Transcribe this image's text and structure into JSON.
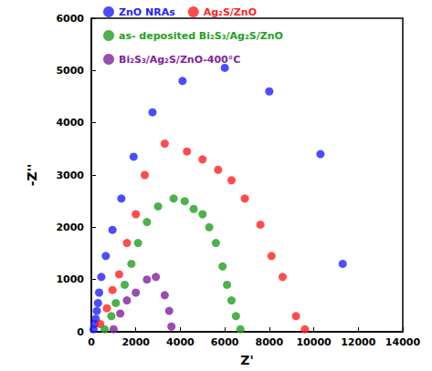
{
  "chart_data": {
    "type": "scatter",
    "x_label": "Z'",
    "y_label": "-Z''",
    "xlim": [
      0,
      14000
    ],
    "xticks": [
      0,
      2000,
      4000,
      6000,
      8000,
      10000,
      12000,
      14000
    ],
    "ylim": [
      0,
      6000
    ],
    "yticks": [
      0,
      1000,
      2000,
      3000,
      4000,
      5000,
      6000
    ],
    "grid": false,
    "legend": "upper left",
    "marker": "circle",
    "series": [
      {
        "name": "ZnO NRAs",
        "color": "#1f1fff",
        "x": [
          100,
          150,
          200,
          250,
          300,
          350,
          450,
          650,
          950,
          1350,
          1900,
          2750,
          4100,
          6000,
          8000,
          10300,
          11300
        ],
        "values": [
          50,
          150,
          250,
          400,
          550,
          750,
          1050,
          1450,
          1950,
          2550,
          3350,
          4200,
          4800,
          5050,
          4600,
          3400,
          1300
        ]
      },
      {
        "name": "Ag₂S/ZnO",
        "color": "#ff1f1f",
        "x": [
          400,
          700,
          950,
          1250,
          1600,
          2000,
          2400,
          3300,
          4300,
          5000,
          5700,
          6300,
          6900,
          7600,
          8100,
          8600,
          9200,
          9600
        ],
        "values": [
          150,
          450,
          800,
          1100,
          1700,
          2250,
          3000,
          3600,
          3450,
          3300,
          3100,
          2900,
          2550,
          2050,
          1450,
          1050,
          300,
          50
        ]
      },
      {
        "name": "as- deposited Bi₂S₃/Ag₂S/ZnO",
        "color": "#1f9f1f",
        "x": [
          600,
          900,
          1100,
          1500,
          1800,
          2100,
          2500,
          3000,
          3700,
          4200,
          4600,
          5000,
          5300,
          5600,
          5900,
          6100,
          6300,
          6500,
          6700
        ],
        "values": [
          50,
          300,
          550,
          900,
          1300,
          1700,
          2100,
          2400,
          2550,
          2500,
          2350,
          2250,
          2000,
          1700,
          1250,
          900,
          600,
          300,
          50
        ]
      },
      {
        "name": "Bi₂S₃/Ag₂S/ZnO-400°C",
        "color": "#7f1f9f",
        "x": [
          1000,
          1300,
          1600,
          2000,
          2500,
          2900,
          3300,
          3500,
          3600
        ],
        "values": [
          50,
          350,
          600,
          750,
          1000,
          1050,
          700,
          400,
          100
        ]
      }
    ]
  }
}
